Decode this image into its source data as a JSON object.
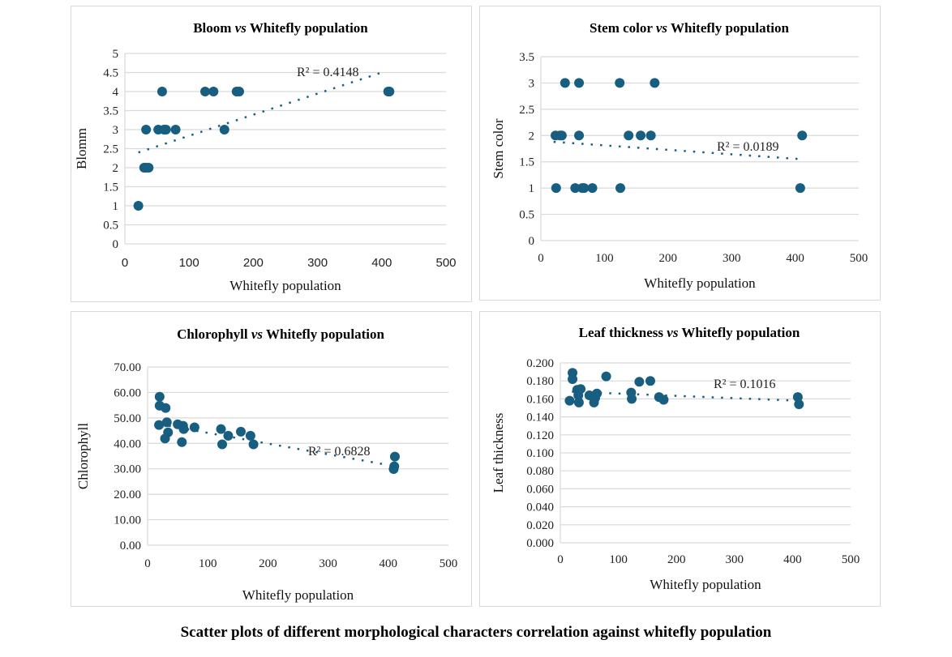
{
  "caption": "Scatter plots of different morphological characters correlation against whitefly population",
  "colors": {
    "marker": "#175e80",
    "trendline": "#175e80",
    "grid": "#d9d9d9",
    "border": "#d9d9d9"
  },
  "chart_data": [
    {
      "type": "scatter",
      "title": {
        "y_name": "Bloom",
        "vs": "vs",
        "x_name": "Whitefly population"
      },
      "xlabel": "Whitefly population",
      "ylabel": "Blomm",
      "xlim": [
        0,
        500
      ],
      "ylim": [
        0,
        5
      ],
      "xticks": [
        "0",
        "100",
        "200",
        "300",
        "400",
        "500"
      ],
      "yticks": [
        "0",
        "0.5",
        "1",
        "1.5",
        "2",
        "2.5",
        "3",
        "3.5",
        "4",
        "4.5",
        "5"
      ],
      "grid": true,
      "trendline": {
        "type": "linear",
        "style": "dotted",
        "from": [
          21,
          2.4
        ],
        "to": [
          400,
          4.5
        ],
        "r2_label": "R² = 0.4148"
      },
      "points": [
        [
          58,
          4
        ],
        [
          125,
          4
        ],
        [
          138,
          4
        ],
        [
          174,
          4
        ],
        [
          178,
          4
        ],
        [
          410,
          4
        ],
        [
          412,
          4
        ],
        [
          33,
          3
        ],
        [
          52,
          3
        ],
        [
          61,
          3
        ],
        [
          64,
          3
        ],
        [
          79,
          3
        ],
        [
          155,
          3
        ],
        [
          30,
          2
        ],
        [
          33,
          2
        ],
        [
          37,
          2
        ],
        [
          21,
          1
        ]
      ]
    },
    {
      "type": "scatter",
      "title": {
        "y_name": "Stem color",
        "vs": "vs",
        "x_name": "Whitefly population"
      },
      "xlabel": "Whitefly population",
      "ylabel": "Stem color",
      "xlim": [
        0,
        500
      ],
      "ylim": [
        0,
        3.5
      ],
      "xticks": [
        "0",
        "100",
        "200",
        "300",
        "400",
        "500"
      ],
      "yticks": [
        "0",
        "0.5",
        "1",
        "1.5",
        "2",
        "2.5",
        "3",
        "3.5"
      ],
      "grid": true,
      "trendline": {
        "type": "linear",
        "style": "dotted",
        "from": [
          20,
          1.88
        ],
        "to": [
          410,
          1.55
        ],
        "r2_label": "R² = 0.0189"
      },
      "points": [
        [
          38,
          3
        ],
        [
          60,
          3
        ],
        [
          124,
          3
        ],
        [
          179,
          3
        ],
        [
          23,
          2
        ],
        [
          30,
          2
        ],
        [
          33,
          2
        ],
        [
          60,
          2
        ],
        [
          138,
          2
        ],
        [
          157,
          2
        ],
        [
          173,
          2
        ],
        [
          411,
          2
        ],
        [
          24,
          1
        ],
        [
          54,
          1
        ],
        [
          65,
          1
        ],
        [
          68,
          1
        ],
        [
          81,
          1
        ],
        [
          125,
          1
        ],
        [
          408,
          1
        ]
      ]
    },
    {
      "type": "scatter",
      "title": {
        "y_name": "Chlorophyll",
        "vs": "vs",
        "x_name": "Whitefly population"
      },
      "xlabel": "Whitefly population",
      "ylabel": "Chlorophyll",
      "xlim": [
        0,
        500
      ],
      "ylim": [
        0,
        70
      ],
      "xticks": [
        "0",
        "100",
        "200",
        "300",
        "400",
        "500"
      ],
      "yticks": [
        "0.00",
        "10.00",
        "20.00",
        "30.00",
        "40.00",
        "50.00",
        "60.00",
        "70.00"
      ],
      "grid": true,
      "trendline": {
        "type": "linear",
        "style": "dotted",
        "from": [
          20,
          47.5
        ],
        "to": [
          400,
          31.5
        ],
        "r2_label": "R² = 0.6828"
      },
      "points": [
        [
          20,
          58.3
        ],
        [
          20,
          54.8
        ],
        [
          30,
          53.9
        ],
        [
          19,
          47.2
        ],
        [
          32,
          48.3
        ],
        [
          34,
          44.3
        ],
        [
          29,
          41.9
        ],
        [
          50,
          47.5
        ],
        [
          59,
          46.9
        ],
        [
          60,
          45.6
        ],
        [
          57,
          40.5
        ],
        [
          78,
          46.3
        ],
        [
          122,
          45.6
        ],
        [
          124,
          39.6
        ],
        [
          134,
          43
        ],
        [
          155,
          44.6
        ],
        [
          171,
          43
        ],
        [
          176,
          39.6
        ],
        [
          411,
          34.8
        ],
        [
          410,
          31
        ],
        [
          409,
          29.9
        ]
      ]
    },
    {
      "type": "scatter",
      "title": {
        "y_name": "Leaf thickness",
        "vs": "vs",
        "x_name": "Whitefly population"
      },
      "xlabel": "Whitefly population",
      "ylabel": "Leaf thickness",
      "xlim": [
        0,
        500
      ],
      "ylim": [
        0,
        0.2
      ],
      "xticks": [
        "0",
        "100",
        "200",
        "300",
        "400",
        "500"
      ],
      "yticks": [
        "0.000",
        "0.020",
        "0.040",
        "0.060",
        "0.080",
        "0.100",
        "0.120",
        "0.140",
        "0.160",
        "0.180",
        "0.200"
      ],
      "grid": true,
      "trendline": {
        "type": "linear",
        "style": "dotted",
        "from": [
          20,
          0.168
        ],
        "to": [
          410,
          0.158
        ],
        "r2_label": "R² = 0.1016"
      },
      "points": [
        [
          21,
          0.189
        ],
        [
          21,
          0.182
        ],
        [
          16,
          0.158
        ],
        [
          29,
          0.17
        ],
        [
          35,
          0.171
        ],
        [
          31,
          0.164
        ],
        [
          32,
          0.156
        ],
        [
          50,
          0.164
        ],
        [
          58,
          0.156
        ],
        [
          60,
          0.161
        ],
        [
          63,
          0.166
        ],
        [
          79,
          0.185
        ],
        [
          122,
          0.167
        ],
        [
          123,
          0.16
        ],
        [
          136,
          0.179
        ],
        [
          155,
          0.18
        ],
        [
          170,
          0.162
        ],
        [
          178,
          0.159
        ],
        [
          409,
          0.162
        ],
        [
          411,
          0.154
        ]
      ]
    }
  ]
}
